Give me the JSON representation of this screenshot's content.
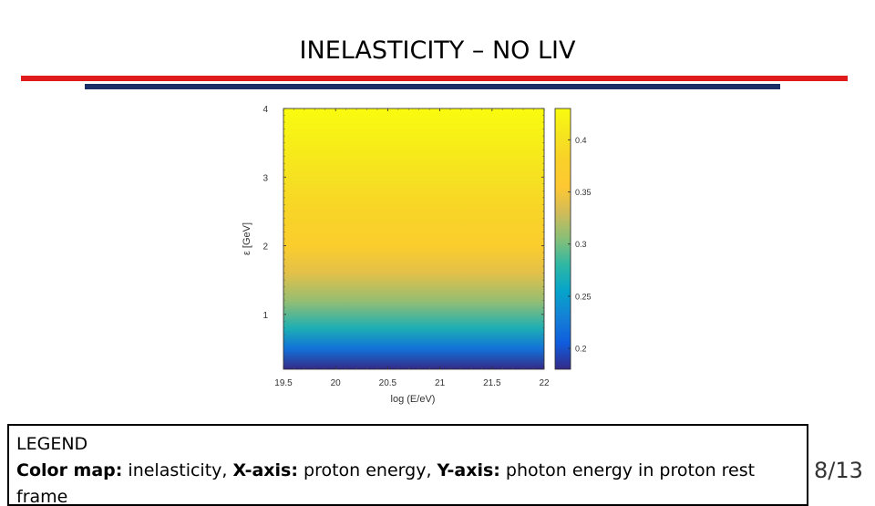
{
  "slide": {
    "title": "INELASTICITY – NO LIV",
    "page_number": "8/13"
  },
  "legend": {
    "heading": "LEGEND",
    "color_map_label": "Color map:",
    "color_map_text": " inelasticity, ",
    "x_label": "X-axis:",
    "x_text": " proton energy, ",
    "y_label": "Y-axis:",
    "y_text": " photon energy in proton rest frame"
  },
  "colors": {
    "red_rule": "#e01b1b",
    "navy_rule": "#1c2e66",
    "colormap": "parula"
  },
  "chart_data": {
    "type": "heatmap",
    "title": "",
    "xlabel": "log (E/eV)",
    "ylabel": "ε [GeV]",
    "xlim": [
      19.5,
      22
    ],
    "ylim": [
      0.2,
      4
    ],
    "x_ticks": [
      "19.5",
      "20",
      "20.5",
      "21",
      "21.5",
      "22"
    ],
    "y_ticks": [
      "1",
      "2",
      "3",
      "4"
    ],
    "colorbar": {
      "range": [
        0.18,
        0.43
      ],
      "ticks": [
        "0.2",
        "0.25",
        "0.3",
        "0.35",
        "0.4"
      ]
    },
    "profile": [
      {
        "y": 0.2,
        "value": 0.18
      },
      {
        "y": 0.5,
        "value": 0.22
      },
      {
        "y": 0.8,
        "value": 0.27
      },
      {
        "y": 1.2,
        "value": 0.31
      },
      {
        "y": 1.6,
        "value": 0.34
      },
      {
        "y": 2.0,
        "value": 0.37
      },
      {
        "y": 2.5,
        "value": 0.385
      },
      {
        "y": 3.0,
        "value": 0.4
      },
      {
        "y": 3.5,
        "value": 0.415
      },
      {
        "y": 4.0,
        "value": 0.43
      }
    ],
    "note_profile": ""
  }
}
